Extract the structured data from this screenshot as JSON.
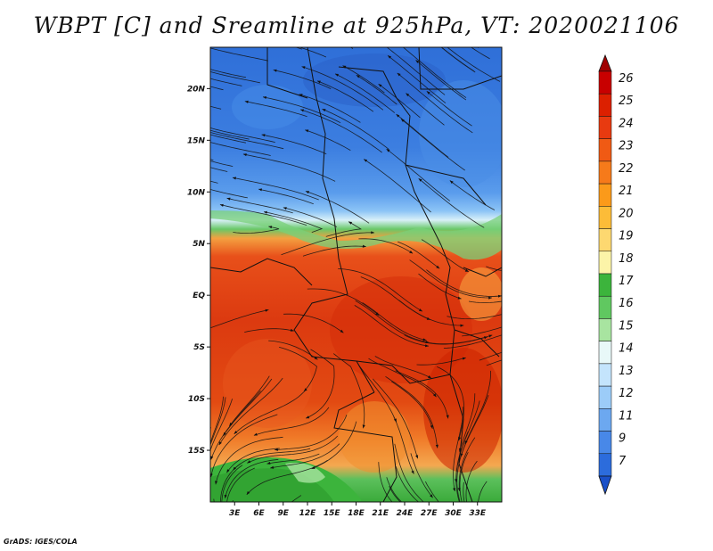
{
  "title": "WBPT [C] and Sreamline at 925hPa, VT: 2020021106",
  "credit": "GrADS: IGES/COLA",
  "map": {
    "lat_range": [
      -20,
      24
    ],
    "lon_range": [
      0,
      36
    ],
    "lat_ticks": [
      {
        "value": 20,
        "label": "20N"
      },
      {
        "value": 15,
        "label": "15N"
      },
      {
        "value": 10,
        "label": "10N"
      },
      {
        "value": 5,
        "label": "5N"
      },
      {
        "value": 0,
        "label": "EQ"
      },
      {
        "value": -5,
        "label": "5S"
      },
      {
        "value": -10,
        "label": "10S"
      },
      {
        "value": -15,
        "label": "15S"
      }
    ],
    "lon_ticks": [
      {
        "value": 3,
        "label": "3E"
      },
      {
        "value": 6,
        "label": "6E"
      },
      {
        "value": 9,
        "label": "9E"
      },
      {
        "value": 12,
        "label": "12E"
      },
      {
        "value": 15,
        "label": "15E"
      },
      {
        "value": 18,
        "label": "18E"
      },
      {
        "value": 21,
        "label": "21E"
      },
      {
        "value": 24,
        "label": "24E"
      },
      {
        "value": 27,
        "label": "27E"
      },
      {
        "value": 30,
        "label": "30E"
      },
      {
        "value": 33,
        "label": "33E"
      }
    ]
  },
  "colorbar": {
    "labels": [
      "26",
      "25",
      "24",
      "23",
      "22",
      "21",
      "20",
      "19",
      "18",
      "17",
      "16",
      "15",
      "14",
      "13",
      "12",
      "11",
      "9",
      "7"
    ],
    "colors": [
      "#c80000",
      "#dc2000",
      "#e83a10",
      "#f05a14",
      "#f67a1a",
      "#fb9a1a",
      "#fcbc38",
      "#fdd870",
      "#fcf4a8",
      "#3cb43c",
      "#60c860",
      "#a8e4a0",
      "#e8f8f8",
      "#c4e4fc",
      "#9cccf8",
      "#6ca8f0",
      "#4888e8",
      "#2c6cdc"
    ],
    "top_color": "#a00000",
    "bottom_color": "#1a50c8"
  }
}
